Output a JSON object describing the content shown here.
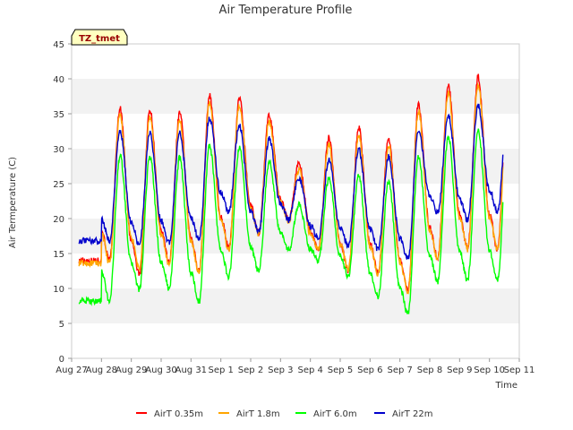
{
  "chart_data": {
    "type": "line",
    "title": "Air Temperature Profile",
    "xlabel": "Time",
    "ylabel": "Air Termperature (C)",
    "ylim": [
      0,
      45
    ],
    "yticks": [
      0,
      5,
      10,
      15,
      20,
      25,
      30,
      35,
      40,
      45
    ],
    "xlim": [
      0,
      15
    ],
    "xticks": [
      0,
      1,
      2,
      3,
      4,
      5,
      6,
      7,
      8,
      9,
      10,
      11,
      12,
      13,
      14,
      15
    ],
    "xtick_labels": [
      "Aug 27",
      "Aug 28",
      "Aug 29",
      "Aug 30",
      "Aug 31",
      "Sep 1",
      "Sep 2",
      "Sep 3",
      "Sep 4",
      "Sep 5",
      "Sep 6",
      "Sep 7",
      "Sep 8",
      "Sep 9",
      "Sep 10",
      "Sep 11"
    ],
    "grid": "horizontal-bands",
    "legend_position": "bottom",
    "annotation": "TZ_tmet",
    "x_start": 0.25,
    "x_end": 14.45,
    "series": [
      {
        "name": "AirT 0.35m",
        "color": "#ff0000",
        "max": [
          35.8,
          35.6,
          35.2,
          37.6,
          37.2,
          34.8,
          28.0,
          31.6,
          33.0,
          31.6,
          36.3,
          39.0,
          40.3,
          38.9
        ],
        "min": [
          14.0,
          12.0,
          13.8,
          12.5,
          15.8,
          18.0,
          19.8,
          15.7,
          12.6,
          12.3,
          9.8,
          14.3,
          15.8,
          15.6
        ]
      },
      {
        "name": "AirT 1.8m",
        "color": "#ffa500",
        "max": [
          34.8,
          34.5,
          34.2,
          36.6,
          36.2,
          33.8,
          27.0,
          30.6,
          32.0,
          30.6,
          35.3,
          38.0,
          39.2,
          37.8
        ],
        "min": [
          13.6,
          12.8,
          13.5,
          12.3,
          15.5,
          17.8,
          19.6,
          15.5,
          12.8,
          12.1,
          9.6,
          14.1,
          15.6,
          15.5
        ]
      },
      {
        "name": "AirT 6.0m",
        "color": "#00ff00",
        "max": [
          29.0,
          28.9,
          28.7,
          30.4,
          30.2,
          28.1,
          22.0,
          25.7,
          26.0,
          25.4,
          28.9,
          31.7,
          32.7,
          32.0
        ],
        "min": [
          8.2,
          9.8,
          10.0,
          8.1,
          11.7,
          12.4,
          15.4,
          14.0,
          11.8,
          8.8,
          6.3,
          11.0,
          11.2,
          11.2
        ]
      },
      {
        "name": "AirT 22m",
        "color": "#0000cc",
        "max": [
          32.5,
          32.2,
          32.2,
          34.5,
          33.4,
          31.4,
          25.8,
          28.3,
          29.9,
          28.8,
          32.6,
          34.9,
          36.3,
          36.0
        ],
        "min": [
          16.8,
          16.2,
          16.5,
          17.0,
          21.0,
          18.0,
          19.8,
          17.2,
          16.1,
          15.6,
          14.2,
          20.8,
          19.8,
          21.0
        ]
      }
    ]
  }
}
